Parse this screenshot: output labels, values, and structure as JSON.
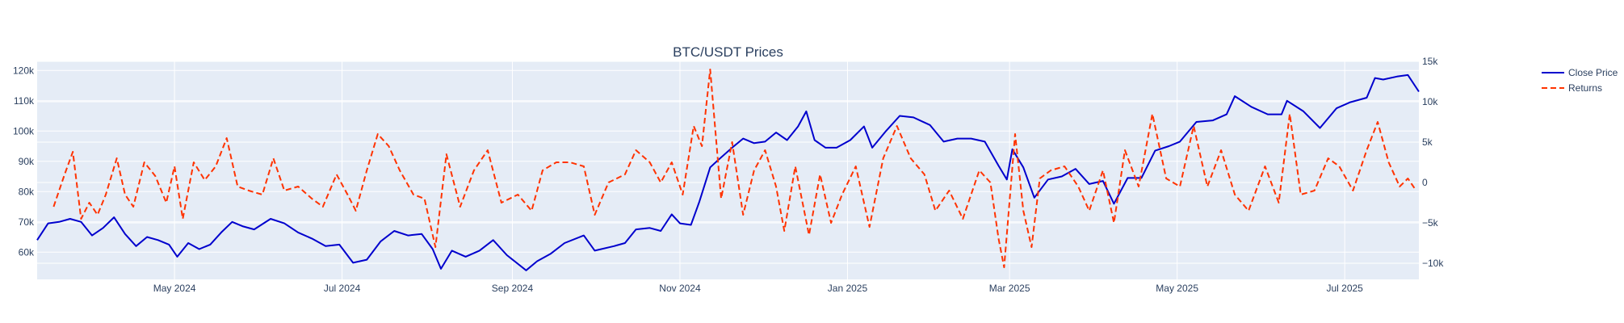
{
  "chart_data": {
    "type": "line",
    "title": "BTC/USDT Prices",
    "xlabel": "",
    "ylabel": "",
    "y2label": "",
    "x_range": [
      "2024-03-12",
      "2025-07-28"
    ],
    "ylim": [
      51000,
      123000
    ],
    "y2lim": [
      -12000,
      15000
    ],
    "grid": true,
    "legend_position": "top-right, outside plot",
    "plot_background": "#e5ecf6",
    "x_ticks": [
      {
        "date": "2024-05-01",
        "label": "May 2024"
      },
      {
        "date": "2024-07-01",
        "label": "Jul 2024"
      },
      {
        "date": "2024-09-01",
        "label": "Sep 2024"
      },
      {
        "date": "2024-11-01",
        "label": "Nov 2024"
      },
      {
        "date": "2025-01-01",
        "label": "Jan 2025"
      },
      {
        "date": "2025-03-01",
        "label": "Mar 2025"
      },
      {
        "date": "2025-05-01",
        "label": "May 2025"
      },
      {
        "date": "2025-07-01",
        "label": "Jul 2025"
      }
    ],
    "y_ticks": [
      {
        "value": 60000,
        "label": "60k"
      },
      {
        "value": 70000,
        "label": "70k"
      },
      {
        "value": 80000,
        "label": "80k"
      },
      {
        "value": 90000,
        "label": "90k"
      },
      {
        "value": 100000,
        "label": "100k"
      },
      {
        "value": 110000,
        "label": "110k"
      },
      {
        "value": 120000,
        "label": "120k"
      }
    ],
    "y2_ticks": [
      {
        "value": -10000,
        "label": "−10k"
      },
      {
        "value": -5000,
        "label": "−5k"
      },
      {
        "value": 0,
        "label": "0"
      },
      {
        "value": 5000,
        "label": "5k"
      },
      {
        "value": 10000,
        "label": "10k"
      },
      {
        "value": 15000,
        "label": "15k"
      }
    ],
    "series": [
      {
        "name": "Close Price",
        "axis": "y",
        "color": "#0000cd",
        "dash": "solid",
        "points": [
          [
            "2024-03-12",
            64000
          ],
          [
            "2024-03-16",
            69500
          ],
          [
            "2024-03-20",
            70000
          ],
          [
            "2024-03-24",
            71000
          ],
          [
            "2024-03-28",
            70000
          ],
          [
            "2024-04-01",
            65500
          ],
          [
            "2024-04-05",
            68000
          ],
          [
            "2024-04-09",
            71500
          ],
          [
            "2024-04-13",
            66000
          ],
          [
            "2024-04-17",
            62000
          ],
          [
            "2024-04-21",
            65000
          ],
          [
            "2024-04-25",
            64000
          ],
          [
            "2024-04-29",
            62500
          ],
          [
            "2024-05-02",
            58500
          ],
          [
            "2024-05-06",
            63000
          ],
          [
            "2024-05-10",
            61000
          ],
          [
            "2024-05-14",
            62500
          ],
          [
            "2024-05-18",
            66500
          ],
          [
            "2024-05-22",
            70000
          ],
          [
            "2024-05-26",
            68500
          ],
          [
            "2024-05-30",
            67500
          ],
          [
            "2024-06-05",
            71000
          ],
          [
            "2024-06-10",
            69500
          ],
          [
            "2024-06-15",
            66500
          ],
          [
            "2024-06-20",
            64500
          ],
          [
            "2024-06-25",
            62000
          ],
          [
            "2024-06-30",
            62500
          ],
          [
            "2024-07-05",
            56500
          ],
          [
            "2024-07-10",
            57500
          ],
          [
            "2024-07-15",
            63500
          ],
          [
            "2024-07-20",
            67000
          ],
          [
            "2024-07-25",
            65500
          ],
          [
            "2024-07-30",
            66000
          ],
          [
            "2024-08-03",
            61000
          ],
          [
            "2024-08-06",
            54500
          ],
          [
            "2024-08-10",
            60500
          ],
          [
            "2024-08-15",
            58500
          ],
          [
            "2024-08-20",
            60500
          ],
          [
            "2024-08-25",
            64000
          ],
          [
            "2024-08-30",
            59000
          ],
          [
            "2024-09-06",
            54000
          ],
          [
            "2024-09-10",
            57000
          ],
          [
            "2024-09-15",
            59500
          ],
          [
            "2024-09-20",
            63000
          ],
          [
            "2024-09-27",
            65500
          ],
          [
            "2024-10-01",
            60500
          ],
          [
            "2024-10-08",
            62000
          ],
          [
            "2024-10-12",
            63000
          ],
          [
            "2024-10-16",
            67500
          ],
          [
            "2024-10-21",
            68000
          ],
          [
            "2024-10-25",
            67000
          ],
          [
            "2024-10-29",
            72500
          ],
          [
            "2024-11-01",
            69500
          ],
          [
            "2024-11-05",
            69000
          ],
          [
            "2024-11-08",
            76500
          ],
          [
            "2024-11-12",
            88000
          ],
          [
            "2024-11-15",
            90500
          ],
          [
            "2024-11-20",
            94500
          ],
          [
            "2024-11-24",
            97500
          ],
          [
            "2024-11-28",
            96000
          ],
          [
            "2024-12-02",
            96500
          ],
          [
            "2024-12-06",
            99500
          ],
          [
            "2024-12-10",
            97000
          ],
          [
            "2024-12-14",
            101500
          ],
          [
            "2024-12-17",
            106500
          ],
          [
            "2024-12-20",
            97000
          ],
          [
            "2024-12-24",
            94500
          ],
          [
            "2024-12-28",
            94500
          ],
          [
            "2025-01-02",
            97000
          ],
          [
            "2025-01-07",
            101500
          ],
          [
            "2025-01-10",
            94500
          ],
          [
            "2025-01-15",
            100000
          ],
          [
            "2025-01-20",
            105000
          ],
          [
            "2025-01-25",
            104500
          ],
          [
            "2025-01-31",
            102000
          ],
          [
            "2025-02-05",
            96500
          ],
          [
            "2025-02-10",
            97500
          ],
          [
            "2025-02-15",
            97500
          ],
          [
            "2025-02-20",
            96500
          ],
          [
            "2025-02-25",
            88500
          ],
          [
            "2025-02-28",
            84000
          ],
          [
            "2025-03-02",
            94000
          ],
          [
            "2025-03-06",
            88000
          ],
          [
            "2025-03-10",
            78000
          ],
          [
            "2025-03-15",
            84000
          ],
          [
            "2025-03-20",
            85000
          ],
          [
            "2025-03-25",
            87500
          ],
          [
            "2025-03-30",
            82500
          ],
          [
            "2025-04-04",
            83500
          ],
          [
            "2025-04-08",
            76000
          ],
          [
            "2025-04-13",
            84500
          ],
          [
            "2025-04-18",
            84500
          ],
          [
            "2025-04-23",
            93500
          ],
          [
            "2025-04-28",
            95000
          ],
          [
            "2025-05-02",
            96500
          ],
          [
            "2025-05-08",
            103000
          ],
          [
            "2025-05-14",
            103500
          ],
          [
            "2025-05-19",
            105500
          ],
          [
            "2025-05-22",
            111500
          ],
          [
            "2025-05-28",
            108000
          ],
          [
            "2025-06-03",
            105500
          ],
          [
            "2025-06-08",
            105500
          ],
          [
            "2025-06-10",
            110000
          ],
          [
            "2025-06-16",
            106500
          ],
          [
            "2025-06-22",
            101000
          ],
          [
            "2025-06-28",
            107500
          ],
          [
            "2025-07-03",
            109500
          ],
          [
            "2025-07-09",
            111000
          ],
          [
            "2025-07-12",
            117500
          ],
          [
            "2025-07-15",
            117000
          ],
          [
            "2025-07-20",
            118000
          ],
          [
            "2025-07-24",
            118500
          ],
          [
            "2025-07-28",
            113000
          ]
        ]
      },
      {
        "name": "Returns",
        "axis": "y2",
        "color": "#ff3300",
        "dash": "dashed",
        "points": [
          [
            "2024-03-18",
            -3000
          ],
          [
            "2024-03-22",
            1000
          ],
          [
            "2024-03-25",
            3800
          ],
          [
            "2024-03-28",
            -4500
          ],
          [
            "2024-03-31",
            -2500
          ],
          [
            "2024-04-03",
            -4000
          ],
          [
            "2024-04-06",
            -1500
          ],
          [
            "2024-04-10",
            3000
          ],
          [
            "2024-04-13",
            -1500
          ],
          [
            "2024-04-16",
            -3000
          ],
          [
            "2024-04-20",
            2500
          ],
          [
            "2024-04-24",
            800
          ],
          [
            "2024-04-28",
            -2500
          ],
          [
            "2024-05-01",
            2000
          ],
          [
            "2024-05-04",
            -4500
          ],
          [
            "2024-05-08",
            2500
          ],
          [
            "2024-05-12",
            300
          ],
          [
            "2024-05-16",
            2000
          ],
          [
            "2024-05-20",
            5500
          ],
          [
            "2024-05-24",
            -500
          ],
          [
            "2024-05-28",
            -1000
          ],
          [
            "2024-06-02",
            -1500
          ],
          [
            "2024-06-06",
            3000
          ],
          [
            "2024-06-10",
            -1000
          ],
          [
            "2024-06-15",
            -500
          ],
          [
            "2024-06-20",
            -2000
          ],
          [
            "2024-06-24",
            -3000
          ],
          [
            "2024-06-29",
            1000
          ],
          [
            "2024-07-03",
            -1500
          ],
          [
            "2024-07-06",
            -3500
          ],
          [
            "2024-07-10",
            1500
          ],
          [
            "2024-07-14",
            6000
          ],
          [
            "2024-07-18",
            4500
          ],
          [
            "2024-07-22",
            1500
          ],
          [
            "2024-07-27",
            -1500
          ],
          [
            "2024-07-31",
            -2000
          ],
          [
            "2024-08-04",
            -8000
          ],
          [
            "2024-08-08",
            3500
          ],
          [
            "2024-08-13",
            -3000
          ],
          [
            "2024-08-18",
            1500
          ],
          [
            "2024-08-23",
            4000
          ],
          [
            "2024-08-28",
            -2500
          ],
          [
            "2024-09-03",
            -1500
          ],
          [
            "2024-09-08",
            -3500
          ],
          [
            "2024-09-12",
            1500
          ],
          [
            "2024-09-17",
            2500
          ],
          [
            "2024-09-22",
            2500
          ],
          [
            "2024-09-27",
            2000
          ],
          [
            "2024-10-01",
            -4000
          ],
          [
            "2024-10-06",
            0
          ],
          [
            "2024-10-12",
            1000
          ],
          [
            "2024-10-16",
            4000
          ],
          [
            "2024-10-21",
            2500
          ],
          [
            "2024-10-25",
            0
          ],
          [
            "2024-10-29",
            2500
          ],
          [
            "2024-11-02",
            -1500
          ],
          [
            "2024-11-06",
            7000
          ],
          [
            "2024-11-09",
            4500
          ],
          [
            "2024-11-12",
            14000
          ],
          [
            "2024-11-16",
            -2000
          ],
          [
            "2024-11-20",
            5000
          ],
          [
            "2024-11-24",
            -4000
          ],
          [
            "2024-11-28",
            1500
          ],
          [
            "2024-12-02",
            4000
          ],
          [
            "2024-12-06",
            -500
          ],
          [
            "2024-12-09",
            -6000
          ],
          [
            "2024-12-13",
            2000
          ],
          [
            "2024-12-18",
            -6500
          ],
          [
            "2024-12-22",
            1000
          ],
          [
            "2024-12-26",
            -5000
          ],
          [
            "2024-12-30",
            -1500
          ],
          [
            "2025-01-04",
            2000
          ],
          [
            "2025-01-09",
            -5500
          ],
          [
            "2025-01-14",
            3000
          ],
          [
            "2025-01-19",
            7000
          ],
          [
            "2025-01-24",
            3000
          ],
          [
            "2025-01-29",
            1000
          ],
          [
            "2025-02-02",
            -3500
          ],
          [
            "2025-02-07",
            -1000
          ],
          [
            "2025-02-12",
            -4500
          ],
          [
            "2025-02-18",
            1500
          ],
          [
            "2025-02-22",
            0
          ],
          [
            "2025-02-25",
            -7000
          ],
          [
            "2025-02-27",
            -10500
          ],
          [
            "2025-03-03",
            6000
          ],
          [
            "2025-03-06",
            -3500
          ],
          [
            "2025-03-09",
            -8000
          ],
          [
            "2025-03-12",
            500
          ],
          [
            "2025-03-16",
            1500
          ],
          [
            "2025-03-21",
            2000
          ],
          [
            "2025-03-26",
            -500
          ],
          [
            "2025-03-30",
            -3500
          ],
          [
            "2025-04-04",
            1500
          ],
          [
            "2025-04-08",
            -5000
          ],
          [
            "2025-04-12",
            4000
          ],
          [
            "2025-04-17",
            -500
          ],
          [
            "2025-04-22",
            8500
          ],
          [
            "2025-04-27",
            500
          ],
          [
            "2025-05-02",
            -500
          ],
          [
            "2025-05-07",
            7000
          ],
          [
            "2025-05-12",
            -500
          ],
          [
            "2025-05-17",
            4000
          ],
          [
            "2025-05-22",
            -1500
          ],
          [
            "2025-05-27",
            -3500
          ],
          [
            "2025-06-02",
            2000
          ],
          [
            "2025-06-07",
            -2500
          ],
          [
            "2025-06-11",
            8500
          ],
          [
            "2025-06-15",
            -1500
          ],
          [
            "2025-06-20",
            -1000
          ],
          [
            "2025-06-25",
            3000
          ],
          [
            "2025-06-29",
            2000
          ],
          [
            "2025-07-04",
            -1000
          ],
          [
            "2025-07-09",
            4000
          ],
          [
            "2025-07-13",
            7500
          ],
          [
            "2025-07-17",
            2500
          ],
          [
            "2025-07-21",
            -500
          ],
          [
            "2025-07-24",
            500
          ],
          [
            "2025-07-27",
            -1000
          ]
        ]
      }
    ]
  }
}
